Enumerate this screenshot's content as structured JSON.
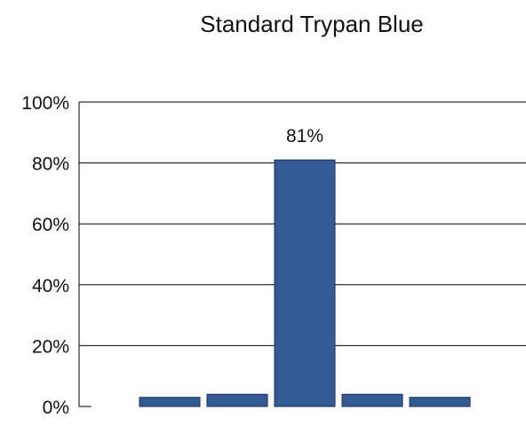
{
  "chart_data": {
    "type": "bar",
    "title": "Standard Trypan Blue",
    "xlabel": "",
    "ylabel": "",
    "categories": [
      "",
      "",
      "",
      "",
      ""
    ],
    "values": [
      3,
      4,
      81,
      4,
      3
    ],
    "data_labels": [
      "",
      "",
      "81%",
      "",
      ""
    ],
    "ylim": [
      0,
      100
    ],
    "yticks": [
      {
        "value": 0,
        "label": "0%"
      },
      {
        "value": 20,
        "label": "20%"
      },
      {
        "value": 40,
        "label": "40%"
      },
      {
        "value": 60,
        "label": "60%"
      },
      {
        "value": 80,
        "label": "80%"
      },
      {
        "value": 100,
        "label": "100%"
      }
    ],
    "grid": true,
    "legend": "none",
    "bar_color": "#345a96",
    "bar_stroke": "#1c2f52"
  }
}
